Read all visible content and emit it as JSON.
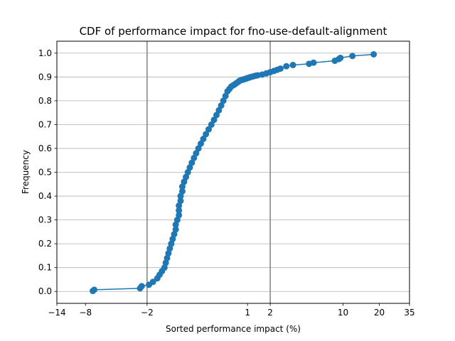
{
  "chart_data": {
    "type": "scatter",
    "title": "CDF of performance impact for fno-use-default-alignment",
    "xlabel": "Sorted performance impact (%)",
    "ylabel": "Frequency",
    "xlim": [
      -14,
      35
    ],
    "ylim": [
      -0.05,
      1.05
    ],
    "x_scale": "symlog",
    "x_ticks": [
      -14,
      -8,
      -2,
      1,
      2,
      10,
      20,
      35
    ],
    "x_tick_labels": [
      "−14",
      "−8",
      "−2",
      "1",
      "2",
      "10",
      "20",
      "35"
    ],
    "y_ticks": [
      0.0,
      0.1,
      0.2,
      0.3,
      0.4,
      0.5,
      0.6,
      0.7,
      0.8,
      0.9,
      1.0
    ],
    "y_tick_labels": [
      "0.0",
      "0.1",
      "0.2",
      "0.3",
      "0.4",
      "0.5",
      "0.6",
      "0.7",
      "0.8",
      "0.9",
      "1.0"
    ],
    "grid": "y",
    "vlines": [
      -2,
      2
    ],
    "series": [
      {
        "color": "#1f77b4",
        "x": [
          -6.9,
          -6.7,
          -2.4,
          -2.3,
          -1.9,
          -1.7,
          -1.5,
          -1.4,
          -1.3,
          -1.2,
          -1.15,
          -1.1,
          -1.05,
          -1.0,
          -0.95,
          -0.9,
          -0.85,
          -0.8,
          -0.8,
          -0.75,
          -0.7,
          -0.7,
          -0.7,
          -0.65,
          -0.65,
          -0.6,
          -0.6,
          -0.55,
          -0.5,
          -0.45,
          -0.4,
          -0.35,
          -0.3,
          -0.25,
          -0.2,
          -0.15,
          -0.1,
          -0.05,
          0.0,
          0.05,
          0.1,
          0.15,
          0.2,
          0.25,
          0.3,
          0.35,
          0.4,
          0.45,
          0.5,
          0.55,
          0.6,
          0.65,
          0.7,
          0.75,
          0.8,
          0.85,
          0.9,
          0.95,
          1.0,
          1.05,
          1.1,
          1.2,
          1.3,
          1.4,
          1.6,
          1.8,
          2.0,
          2.2,
          2.4,
          2.6,
          3.0,
          3.5,
          5.0,
          5.5,
          8.5,
          9.2,
          9.5,
          12.0,
          18.0
        ],
        "y": [
          0.002,
          0.007,
          0.013,
          0.022,
          0.028,
          0.04,
          0.055,
          0.07,
          0.085,
          0.1,
          0.12,
          0.14,
          0.16,
          0.18,
          0.2,
          0.22,
          0.24,
          0.26,
          0.28,
          0.3,
          0.32,
          0.34,
          0.36,
          0.38,
          0.4,
          0.42,
          0.44,
          0.46,
          0.48,
          0.5,
          0.52,
          0.54,
          0.56,
          0.58,
          0.6,
          0.62,
          0.64,
          0.66,
          0.68,
          0.7,
          0.72,
          0.74,
          0.76,
          0.78,
          0.8,
          0.82,
          0.84,
          0.85,
          0.86,
          0.865,
          0.87,
          0.875,
          0.88,
          0.885,
          0.887,
          0.889,
          0.891,
          0.893,
          0.895,
          0.897,
          0.899,
          0.902,
          0.905,
          0.907,
          0.91,
          0.915,
          0.92,
          0.925,
          0.93,
          0.935,
          0.945,
          0.95,
          0.955,
          0.96,
          0.968,
          0.975,
          0.98,
          0.988,
          0.995
        ]
      }
    ]
  }
}
